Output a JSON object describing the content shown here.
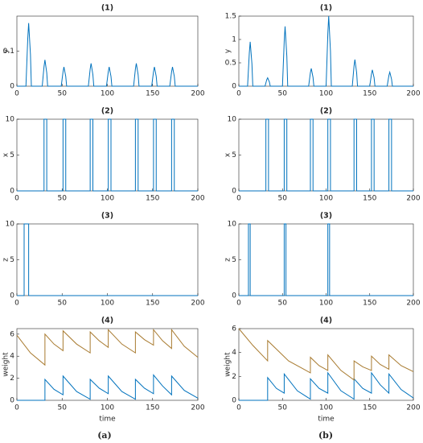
{
  "chart_data": [
    {
      "type": "line",
      "title": "(1)",
      "ylabel": "y",
      "xlim": [
        0,
        200
      ],
      "xticks": [
        0,
        50,
        100,
        150,
        200
      ],
      "ylim": [
        0,
        0.2
      ],
      "yticks": [
        0,
        0.1
      ],
      "series": [
        {
          "color": "#0072bd",
          "x": [
            0,
            10,
            12,
            13,
            15,
            16,
            28,
            30,
            31,
            33,
            34,
            49,
            51,
            52,
            54,
            55,
            79,
            81,
            82,
            84,
            85,
            99,
            101,
            102,
            104,
            105,
            129,
            131,
            132,
            134,
            135,
            149,
            151,
            152,
            154,
            155,
            169,
            171,
            172,
            174,
            175,
            200
          ],
          "values": [
            0,
            0,
            0.135,
            0.18,
            0.09,
            0,
            0,
            0.056,
            0.075,
            0.038,
            0,
            0,
            0.041,
            0.055,
            0.028,
            0,
            0,
            0.049,
            0.065,
            0.033,
            0,
            0,
            0.041,
            0.055,
            0.028,
            0,
            0,
            0.049,
            0.065,
            0.033,
            0,
            0,
            0.041,
            0.055,
            0.028,
            0,
            0,
            0.041,
            0.055,
            0.028,
            0,
            0
          ]
        }
      ]
    },
    {
      "type": "line",
      "title": "(1)",
      "ylabel": "y",
      "xlim": [
        0,
        200
      ],
      "xticks": [
        0,
        50,
        100,
        150,
        200
      ],
      "ylim": [
        0,
        1.5
      ],
      "yticks": [
        0,
        0.5,
        1,
        1.5
      ],
      "series": [
        {
          "color": "#0072bd",
          "x": [
            0,
            10,
            12,
            13,
            15,
            16,
            30,
            32,
            33,
            35,
            36,
            50,
            52,
            53,
            55,
            56,
            80,
            82,
            83,
            85,
            86,
            100,
            102,
            103,
            105,
            106,
            130,
            132,
            133,
            135,
            136,
            150,
            152,
            153,
            155,
            156,
            170,
            172,
            173,
            175,
            176,
            200
          ],
          "values": [
            0,
            0,
            0.71,
            0.95,
            0.48,
            0,
            0,
            0.14,
            0.18,
            0.09,
            0,
            0,
            0.96,
            1.28,
            0.64,
            0,
            0,
            0.29,
            0.38,
            0.19,
            0,
            0,
            1.13,
            1.5,
            0.75,
            0,
            0,
            0.43,
            0.57,
            0.29,
            0,
            0,
            0.26,
            0.35,
            0.18,
            0,
            0,
            0.23,
            0.3,
            0.15,
            0,
            0
          ]
        }
      ]
    },
    {
      "type": "line",
      "title": "(2)",
      "ylabel": "x",
      "xlim": [
        0,
        200
      ],
      "xticks": [
        0,
        50,
        100,
        150,
        200
      ],
      "ylim": [
        0,
        10
      ],
      "yticks": [
        0,
        5,
        10
      ],
      "series": [
        {
          "color": "#0072bd",
          "x": [
            0,
            30,
            30,
            33,
            33,
            51,
            51,
            54,
            54,
            81,
            81,
            84,
            84,
            101,
            101,
            104,
            104,
            131,
            131,
            134,
            134,
            151,
            151,
            154,
            154,
            171,
            171,
            174,
            174,
            200
          ],
          "values": [
            0,
            0,
            10,
            10,
            0,
            0,
            10,
            10,
            0,
            0,
            10,
            10,
            0,
            0,
            10,
            10,
            0,
            0,
            10,
            10,
            0,
            0,
            10,
            10,
            0,
            0,
            10,
            10,
            0,
            0
          ]
        }
      ]
    },
    {
      "type": "line",
      "title": "(2)",
      "ylabel": "x",
      "xlim": [
        0,
        200
      ],
      "xticks": [
        0,
        50,
        100,
        150,
        200
      ],
      "ylim": [
        0,
        10
      ],
      "yticks": [
        0,
        5,
        10
      ],
      "series": [
        {
          "color": "#0072bd",
          "x": [
            0,
            31,
            31,
            34,
            34,
            52,
            52,
            55,
            55,
            82,
            82,
            85,
            85,
            102,
            102,
            105,
            105,
            132,
            132,
            135,
            135,
            152,
            152,
            155,
            155,
            172,
            172,
            175,
            175,
            200
          ],
          "values": [
            0,
            0,
            10,
            10,
            0,
            0,
            10,
            10,
            0,
            0,
            10,
            10,
            0,
            0,
            10,
            10,
            0,
            0,
            10,
            10,
            0,
            0,
            10,
            10,
            0,
            0,
            10,
            10,
            0,
            0
          ]
        }
      ]
    },
    {
      "type": "line",
      "title": "(3)",
      "ylabel": "z",
      "xlim": [
        0,
        200
      ],
      "xticks": [
        0,
        50,
        100,
        150,
        200
      ],
      "ylim": [
        0,
        10
      ],
      "yticks": [
        0,
        5,
        10
      ],
      "series": [
        {
          "color": "#0072bd",
          "x": [
            0,
            8,
            8,
            13,
            13,
            200
          ],
          "values": [
            0,
            0,
            10,
            10,
            0,
            0
          ]
        }
      ]
    },
    {
      "type": "line",
      "title": "(3)",
      "ylabel": "z",
      "xlim": [
        0,
        200
      ],
      "xticks": [
        0,
        50,
        100,
        150,
        200
      ],
      "ylim": [
        0,
        10
      ],
      "yticks": [
        0,
        5,
        10
      ],
      "series": [
        {
          "color": "#0072bd",
          "x": [
            0,
            11,
            11,
            13,
            13,
            52,
            52,
            54,
            54,
            102,
            102,
            104,
            104,
            200
          ],
          "values": [
            0,
            0,
            10,
            10,
            0,
            0,
            10,
            10,
            0,
            0,
            10,
            10,
            0,
            0
          ]
        }
      ]
    },
    {
      "type": "line",
      "title": "(4)",
      "ylabel": "weight",
      "xlabel": "time",
      "xlim": [
        0,
        200
      ],
      "xticks": [
        0,
        50,
        100,
        150,
        200
      ],
      "ylim": [
        0,
        6.5
      ],
      "yticks": [
        0,
        2,
        4,
        6
      ],
      "series": [
        {
          "color": "#0072bd",
          "x": [
            0,
            31,
            31,
            41,
            51,
            51,
            66,
            81,
            81,
            91,
            101,
            101,
            116,
            131,
            131,
            141,
            151,
            151,
            161,
            171,
            171,
            185,
            200
          ],
          "values": [
            0,
            0,
            1.9,
            1.0,
            0.5,
            2.2,
            0.8,
            0.1,
            1.9,
            1.1,
            0.6,
            2.2,
            0.8,
            0.1,
            1.9,
            1.1,
            0.6,
            2.3,
            1.3,
            0.5,
            2.2,
            0.9,
            0.2
          ]
        },
        {
          "color": "#a87a2f",
          "x": [
            0,
            15,
            31,
            31,
            41,
            51,
            51,
            66,
            81,
            81,
            91,
            101,
            101,
            116,
            131,
            131,
            141,
            151,
            151,
            161,
            171,
            171,
            185,
            200
          ],
          "values": [
            5.9,
            4.3,
            3.2,
            6.0,
            5.1,
            4.5,
            6.3,
            5.1,
            4.3,
            6.2,
            5.4,
            4.8,
            6.4,
            5.1,
            4.3,
            6.2,
            5.5,
            5.0,
            6.4,
            5.4,
            4.7,
            6.4,
            4.9,
            3.9
          ]
        }
      ]
    },
    {
      "type": "line",
      "title": "(4)",
      "ylabel": "weight",
      "xlabel": "time",
      "xlim": [
        0,
        200
      ],
      "xticks": [
        0,
        50,
        100,
        150,
        200
      ],
      "ylim": [
        0,
        6
      ],
      "yticks": [
        0,
        2,
        4,
        6
      ],
      "series": [
        {
          "color": "#0072bd",
          "x": [
            0,
            33,
            33,
            43,
            52,
            52,
            67,
            82,
            82,
            92,
            102,
            102,
            117,
            132,
            132,
            142,
            152,
            152,
            162,
            172,
            172,
            186,
            200
          ],
          "values": [
            0,
            0,
            1.9,
            1.0,
            0.6,
            2.2,
            0.8,
            0.1,
            1.8,
            1.0,
            0.6,
            2.3,
            0.8,
            0.1,
            1.8,
            1.0,
            0.6,
            2.3,
            1.3,
            0.6,
            2.2,
            0.9,
            0.2
          ]
        },
        {
          "color": "#a87a2f",
          "x": [
            0,
            16,
            33,
            33,
            57,
            82,
            82,
            92,
            102,
            102,
            117,
            132,
            132,
            142,
            152,
            152,
            162,
            172,
            172,
            186,
            200
          ],
          "values": [
            6.0,
            4.6,
            3.3,
            5.0,
            3.3,
            2.3,
            3.6,
            2.9,
            2.5,
            3.8,
            2.5,
            1.7,
            3.3,
            2.8,
            2.5,
            3.7,
            3.0,
            2.6,
            3.8,
            2.9,
            2.4
          ]
        }
      ]
    }
  ],
  "captions": [
    "(a)",
    "(b)"
  ]
}
